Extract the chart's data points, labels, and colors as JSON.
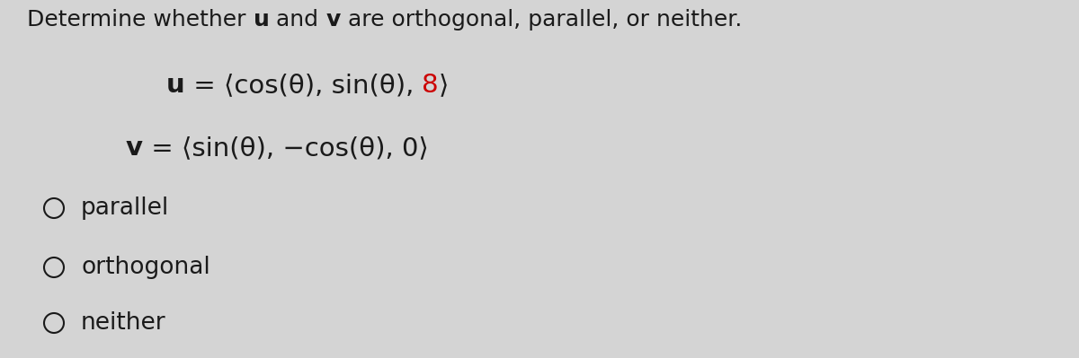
{
  "bg_color": "#d4d4d4",
  "text_color": "#1a1a1a",
  "red_color": "#cc0000",
  "title_normal1": "Determine whether ",
  "title_bold1": "u",
  "title_normal2": " and ",
  "title_bold2": "v",
  "title_normal3": " are orthogonal, parallel, or neither.",
  "u_bold": "u",
  "u_normal": " = ⟨cos(θ), sin(θ), ",
  "u_red": "8",
  "u_close": "⟩",
  "v_bold": "v",
  "v_normal": " = ⟨sin(θ), −cos(θ), 0⟩",
  "options": [
    "parallel",
    "orthogonal",
    "neither"
  ],
  "font_size_title": 18,
  "font_size_eq": 21,
  "font_size_options": 19
}
